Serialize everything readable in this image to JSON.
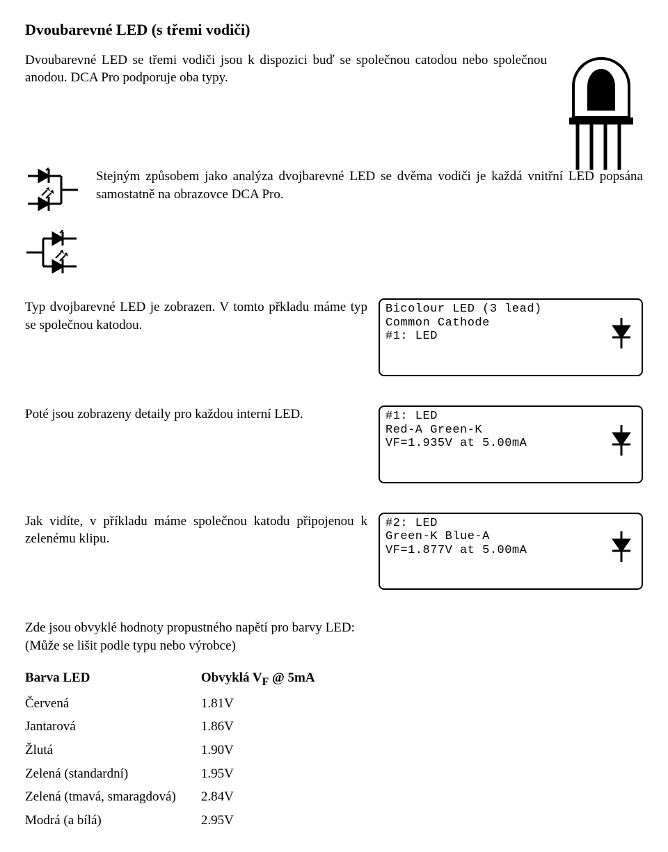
{
  "heading": "Dvoubarevné LED (s třemi vodiči)",
  "p1": "Dvoubarevné LED se třemi vodiči jsou k dispozici buď se společnou catodou nebo společnou anodou. DCA Pro podporuje oba typy.",
  "p2": "Stejným způsobem jako analýza dvojbarevné LED se dvěma vodiči je každá vnitřní LED popsána samostatně na obrazovce DCA Pro.",
  "p3": "Typ dvojbarevné LED je zobrazen. V tomto přkladu máme typ se společnou katodou.",
  "p4": "Poté jsou zobrazeny detaily pro každou interní LED.",
  "p5": "Jak vidíte, v příkladu máme společnou katodu připojenou k zelenému klipu.",
  "lcd1_l1": "Bicolour LED (3 lead)",
  "lcd1_l2": "Common Cathode",
  "lcd1_l3": "#1: LED",
  "lcd2_l1": "#1: LED",
  "lcd2_l2": "Red-A Green-K",
  "lcd2_l3": "VF=1.935V at 5.00mA",
  "lcd3_l1": "#2: LED",
  "lcd3_l2": "Green-K Blue-A",
  "lcd3_l3": "VF=1.877V at 5.00mA",
  "table_intro1": "Zde jsou obvyklé hodnoty propustného napětí pro barvy LED:",
  "table_intro2": "(Může se lišit podle typu nebo výrobce)",
  "table": {
    "header_l": "Barva LED",
    "header_r_prefix": "Obvyklá V",
    "header_r_sub": "F",
    "header_r_suffix": " @ 5mA",
    "rows": [
      [
        "Červená",
        "1.81V"
      ],
      [
        "Jantarová",
        "1.86V"
      ],
      [
        "Žlutá",
        "1.90V"
      ],
      [
        "Zelená (standardní)",
        "1.95V"
      ],
      [
        "Zelená (tmavá, smaragdová)",
        "2.84V"
      ],
      [
        "Modrá (a bílá)",
        "2.95V"
      ]
    ]
  },
  "colors": {
    "text": "#000000",
    "bg": "#ffffff"
  }
}
